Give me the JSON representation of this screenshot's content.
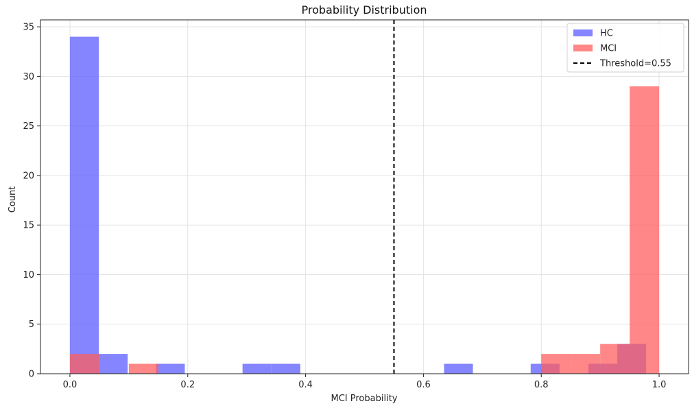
{
  "chart_data": {
    "type": "bar",
    "title": "Probability Distribution",
    "xlabel": "MCI Probability",
    "ylabel": "Count",
    "xlim": [
      -0.05,
      1.05
    ],
    "ylim": [
      0,
      35.7
    ],
    "xticks": [
      0.0,
      0.2,
      0.4,
      0.6,
      0.8,
      1.0
    ],
    "xtick_labels": [
      "0.0",
      "0.2",
      "0.4",
      "0.6",
      "0.8",
      "1.0"
    ],
    "yticks": [
      0,
      5,
      10,
      15,
      20,
      25,
      30,
      35
    ],
    "ytick_labels": [
      "0",
      "5",
      "10",
      "15",
      "20",
      "25",
      "30",
      "35"
    ],
    "grid": true,
    "legend_position": "top-right",
    "series": [
      {
        "name": "HC",
        "color": "#6666ff",
        "opacity": 0.8,
        "bins": [
          {
            "x0": 0.0,
            "x1": 0.049,
            "count": 34
          },
          {
            "x0": 0.049,
            "x1": 0.098,
            "count": 2
          },
          {
            "x0": 0.146,
            "x1": 0.195,
            "count": 1
          },
          {
            "x0": 0.293,
            "x1": 0.342,
            "count": 1
          },
          {
            "x0": 0.342,
            "x1": 0.391,
            "count": 1
          },
          {
            "x0": 0.635,
            "x1": 0.684,
            "count": 1
          },
          {
            "x0": 0.782,
            "x1": 0.831,
            "count": 1
          },
          {
            "x0": 0.88,
            "x1": 0.929,
            "count": 1
          },
          {
            "x0": 0.929,
            "x1": 0.978,
            "count": 3
          }
        ]
      },
      {
        "name": "MCI",
        "color": "#ff5f5f",
        "opacity": 0.75,
        "bins": [
          {
            "x0": 0.0,
            "x1": 0.05,
            "count": 2
          },
          {
            "x0": 0.1,
            "x1": 0.15,
            "count": 1
          },
          {
            "x0": 0.8,
            "x1": 0.85,
            "count": 2
          },
          {
            "x0": 0.85,
            "x1": 0.9,
            "count": 2
          },
          {
            "x0": 0.9,
            "x1": 0.95,
            "count": 3
          },
          {
            "x0": 0.95,
            "x1": 1.0,
            "count": 29
          }
        ]
      }
    ],
    "threshold": {
      "name": "Threshold=0.55",
      "value": 0.55,
      "color": "#000000",
      "style": "dashed"
    }
  }
}
